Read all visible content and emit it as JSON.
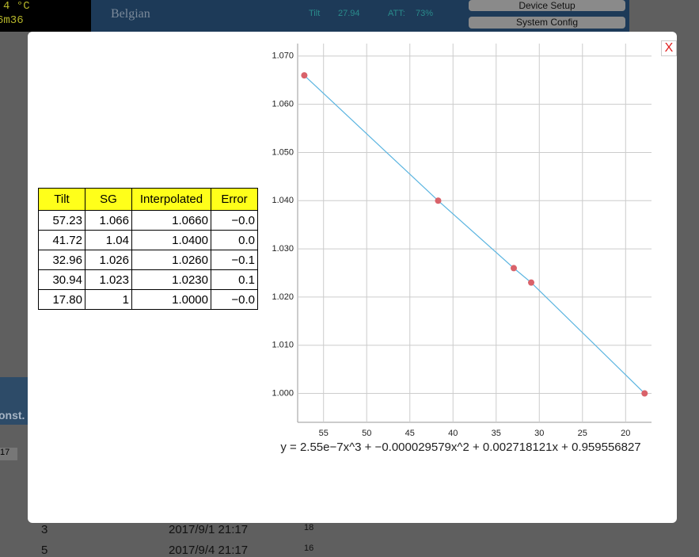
{
  "background": {
    "temp": "4 °C",
    "timer": "6m36",
    "beer": "Belgian",
    "tilt_label": "Tilt",
    "tilt_value": "27.94",
    "att_label": "ATT:",
    "att_value": "73%",
    "device_setup": "Device Setup",
    "system_config": "System Config",
    "const_label": "onst.",
    "input_value": "17",
    "rows": [
      [
        "3",
        "2017/9/1 21:17",
        "18"
      ],
      [
        "5",
        "2017/9/4 21:17",
        "16"
      ]
    ]
  },
  "modal": {
    "close": "X",
    "table": {
      "header": [
        "Tilt",
        "SG",
        "Interpolated",
        "Error"
      ],
      "rows": [
        [
          "57.23",
          "1.066",
          "1.0660",
          "−0.0"
        ],
        [
          "41.72",
          "1.04",
          "1.0400",
          "0.0"
        ],
        [
          "32.96",
          "1.026",
          "1.0260",
          "−0.1"
        ],
        [
          "30.94",
          "1.023",
          "1.0230",
          "0.1"
        ],
        [
          "17.80",
          "1",
          "1.0000",
          "−0.0"
        ]
      ]
    },
    "equation": "y = 2.55e−7x^3 + −0.000029579x^2 + 0.002718121x + 0.959556827"
  },
  "chart_data": {
    "type": "scatter",
    "grid": true,
    "x": [
      57.23,
      41.72,
      32.96,
      30.94,
      17.8
    ],
    "series": [
      {
        "color": "#d9626a",
        "line_color": "#5ab4e0",
        "values": [
          1.066,
          1.04,
          1.026,
          1.023,
          1.0
        ]
      }
    ],
    "xlim": [
      58,
      17
    ],
    "xticks": [
      55,
      50,
      45,
      40,
      35,
      30,
      25,
      20
    ],
    "ylim": [
      0.994,
      1.0726
    ],
    "yticks": [
      {
        "value": 1.0,
        "label": "1.000"
      },
      {
        "value": 1.01,
        "label": "1.010"
      },
      {
        "value": 1.02,
        "label": "1.020"
      },
      {
        "value": 1.03,
        "label": "1.030"
      },
      {
        "value": 1.04,
        "label": "1.040"
      },
      {
        "value": 1.05,
        "label": "1.050"
      },
      {
        "value": 1.06,
        "label": "1.060"
      },
      {
        "value": 1.07,
        "label": "1.070"
      }
    ]
  }
}
